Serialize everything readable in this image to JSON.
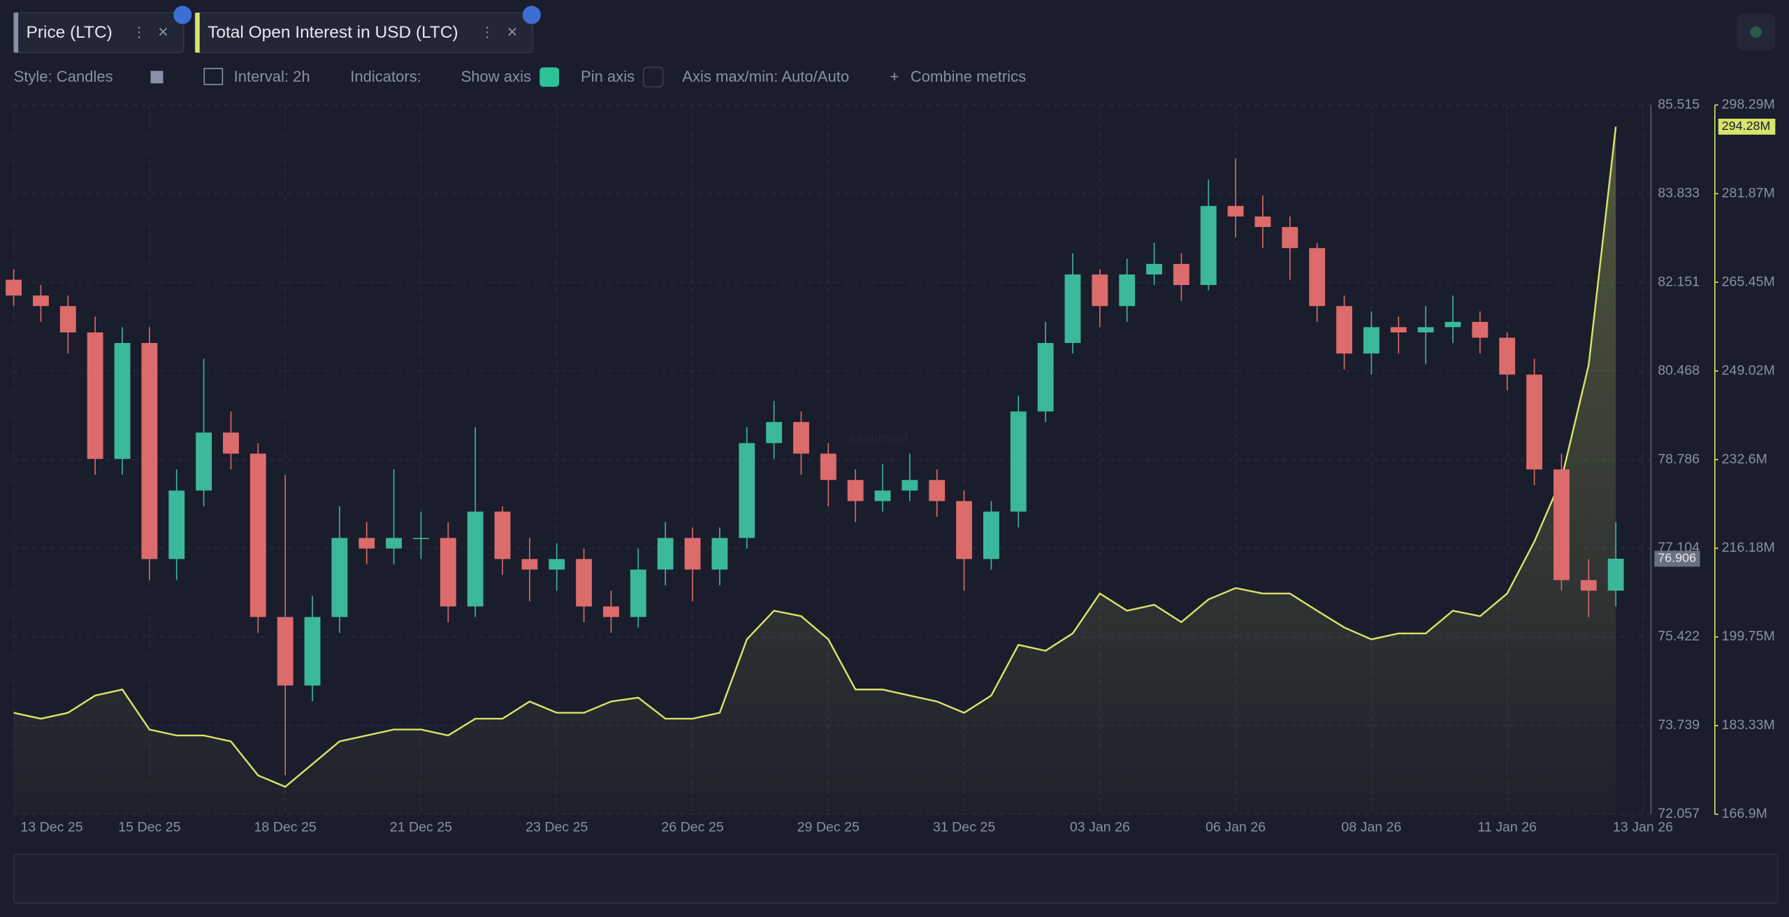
{
  "toolbar": {
    "style": "Style: Candles",
    "interval": "Interval: 2h",
    "indicators": "Indicators:",
    "show_axis": "Show axis",
    "pin_axis": "Pin axis",
    "axis_minmax": "Axis max/min: Auto/Auto",
    "combine": "Combine metrics"
  },
  "chart_data": {
    "type": "candlestick",
    "watermark": "santiment",
    "categories": [
      "13 Dec 25",
      null,
      null,
      null,
      null,
      "15 Dec 25",
      null,
      null,
      null,
      null,
      "18 Dec 25",
      null,
      null,
      null,
      null,
      "21 Dec 25",
      null,
      null,
      null,
      null,
      "23 Dec 25",
      null,
      null,
      null,
      null,
      "26 Dec 25",
      null,
      null,
      null,
      null,
      "29 Dec 25",
      null,
      null,
      null,
      null,
      "31 Dec 25",
      null,
      null,
      null,
      null,
      "03 Jan 26",
      null,
      null,
      null,
      null,
      "06 Jan 26",
      null,
      null,
      null,
      null,
      "08 Jan 26",
      null,
      null,
      null,
      null,
      "11 Jan 26",
      null,
      null,
      null,
      null,
      "13 Jan 26"
    ],
    "series": [
      {
        "name": "Price (LTC)",
        "type": "candlestick",
        "up_color": "#3bb89b",
        "down_color": "#dc6b6b",
        "last_value_label": "76.906",
        "open": [
          82.2,
          81.9,
          81.7,
          81.2,
          78.8,
          81.0,
          76.9,
          78.2,
          79.3,
          78.9,
          75.8,
          74.5,
          75.8,
          77.3,
          77.1,
          77.3,
          77.3,
          76.0,
          77.8,
          76.9,
          76.7,
          76.9,
          76.0,
          75.8,
          76.7,
          77.3,
          76.7,
          77.3,
          79.1,
          79.5,
          78.9,
          78.4,
          78.0,
          78.2,
          78.4,
          78.0,
          76.9,
          77.8,
          79.7,
          81.0,
          82.3,
          81.7,
          82.3,
          82.5,
          82.1,
          83.6,
          83.4,
          83.2,
          82.8,
          81.7,
          80.8,
          81.3,
          81.2,
          81.3,
          81.4,
          81.1,
          80.4,
          78.6,
          76.5,
          76.3,
          null
        ],
        "high": [
          82.4,
          82.1,
          81.9,
          81.5,
          81.3,
          81.3,
          78.6,
          80.7,
          79.7,
          79.1,
          78.5,
          76.2,
          77.9,
          77.6,
          78.6,
          77.8,
          77.6,
          79.4,
          77.9,
          77.3,
          77.2,
          77.1,
          76.3,
          77.1,
          77.6,
          77.5,
          77.5,
          79.4,
          79.9,
          79.7,
          79.1,
          78.6,
          78.7,
          78.9,
          78.6,
          78.2,
          78.0,
          80.0,
          81.4,
          82.7,
          82.4,
          82.6,
          82.9,
          82.7,
          84.1,
          84.5,
          83.8,
          83.4,
          82.9,
          81.9,
          81.6,
          81.5,
          81.7,
          81.9,
          81.6,
          81.2,
          80.7,
          78.9,
          76.9,
          77.6,
          null
        ],
        "low": [
          81.7,
          81.4,
          80.8,
          78.5,
          78.5,
          76.5,
          76.5,
          77.9,
          78.6,
          75.5,
          72.8,
          74.2,
          75.5,
          76.8,
          76.8,
          76.9,
          75.7,
          75.8,
          76.6,
          76.1,
          76.3,
          75.7,
          75.5,
          75.6,
          76.4,
          76.1,
          76.4,
          77.1,
          78.8,
          78.5,
          77.9,
          77.6,
          77.8,
          78.0,
          77.7,
          76.3,
          76.7,
          77.5,
          79.5,
          80.8,
          81.3,
          81.4,
          82.1,
          81.8,
          82.0,
          83.0,
          82.8,
          82.2,
          81.4,
          80.5,
          80.4,
          80.8,
          80.6,
          81.0,
          80.8,
          80.1,
          78.3,
          76.3,
          75.8,
          76.0,
          null
        ],
        "close": [
          81.9,
          81.7,
          81.2,
          78.8,
          81.0,
          76.9,
          78.2,
          79.3,
          78.9,
          75.8,
          74.5,
          75.8,
          77.3,
          77.1,
          77.3,
          77.3,
          76.0,
          77.8,
          76.9,
          76.7,
          76.9,
          76.0,
          75.8,
          76.7,
          77.3,
          76.7,
          77.3,
          79.1,
          79.5,
          78.9,
          78.4,
          78.0,
          78.2,
          78.4,
          78.0,
          76.9,
          77.8,
          79.7,
          81.0,
          82.3,
          81.7,
          82.3,
          82.5,
          82.1,
          83.6,
          83.4,
          83.2,
          82.8,
          81.7,
          80.8,
          81.3,
          81.2,
          81.3,
          81.4,
          81.1,
          80.4,
          78.6,
          76.5,
          76.3,
          76.906,
          null
        ]
      },
      {
        "name": "Total Open Interest in USD (LTC)",
        "type": "line",
        "axis": "y2",
        "color": "#d8e36a",
        "last_value_label": "294.28M",
        "values": [
          185.7,
          184.6,
          185.7,
          188.9,
          190.0,
          182.6,
          181.5,
          181.5,
          180.4,
          174.1,
          172.0,
          176.2,
          180.4,
          181.5,
          182.6,
          182.6,
          181.5,
          184.6,
          184.6,
          187.8,
          185.7,
          185.7,
          187.8,
          188.5,
          184.6,
          184.6,
          185.7,
          199.3,
          204.6,
          203.6,
          199.3,
          190.0,
          190.0,
          188.9,
          187.8,
          185.7,
          188.9,
          198.3,
          197.2,
          200.4,
          207.8,
          204.6,
          205.7,
          202.5,
          206.7,
          208.8,
          207.8,
          207.8,
          204.6,
          201.5,
          199.3,
          200.4,
          200.4,
          204.6,
          203.6,
          207.8,
          217.4,
          229.0,
          250.1,
          294.28,
          null
        ]
      }
    ],
    "ylim": [
      72.057,
      85.515
    ],
    "yticks": [
      85.515,
      83.833,
      82.151,
      80.468,
      78.786,
      77.104,
      75.422,
      73.739,
      72.057
    ],
    "y2lim": [
      166.9,
      298.29
    ],
    "y2ticks": [
      {
        "value": 298.29,
        "label": "298.29M"
      },
      {
        "value": 281.87,
        "label": "281.87M"
      },
      {
        "value": 265.45,
        "label": "265.45M"
      },
      {
        "value": 249.02,
        "label": "249.02M"
      },
      {
        "value": 232.6,
        "label": "232.6M"
      },
      {
        "value": 216.18,
        "label": "216.18M"
      },
      {
        "value": 199.75,
        "label": "199.75M"
      },
      {
        "value": 183.33,
        "label": "183.33M"
      },
      {
        "value": 166.9,
        "label": "166.9M"
      }
    ],
    "grid": true
  }
}
